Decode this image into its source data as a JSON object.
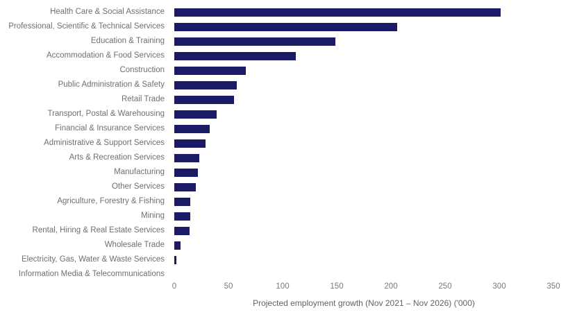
{
  "chart_data": {
    "type": "bar",
    "orientation": "horizontal",
    "title": "",
    "xlabel": "Projected employment growth (Nov 2021 – Nov 2026) ('000)",
    "ylabel": "",
    "categories": [
      "Health Care & Social Assistance",
      "Professional, Scientific & Technical Services",
      "Education & Training",
      "Accommodation & Food Services",
      "Construction",
      "Public Administration & Safety",
      "Retail Trade",
      "Transport, Postal & Warehousing",
      "Financial & Insurance Services",
      "Administrative & Support Services",
      "Arts & Recreation Services",
      "Manufacturing",
      "Other Services",
      "Agriculture, Forestry & Fishing",
      "Mining",
      "Rental, Hiring & Real Estate Services",
      "Wholesale Trade",
      "Electricity, Gas, Water & Waste Services",
      "Information Media & Telecommunications"
    ],
    "values": [
      301,
      206,
      149,
      112,
      66,
      58,
      55,
      39,
      33,
      29,
      23,
      22,
      20,
      15,
      15,
      14,
      6,
      2,
      0
    ],
    "xlim": [
      0,
      350
    ],
    "xticks": [
      0,
      50,
      100,
      150,
      200,
      250,
      300,
      350
    ],
    "grid": false,
    "legend": false,
    "colors": {
      "bar": "#1b1a64",
      "category_label": "#6f6f6f",
      "tick_label": "#7a7a7a",
      "axis_title": "#636363",
      "background": "#ffffff"
    }
  }
}
